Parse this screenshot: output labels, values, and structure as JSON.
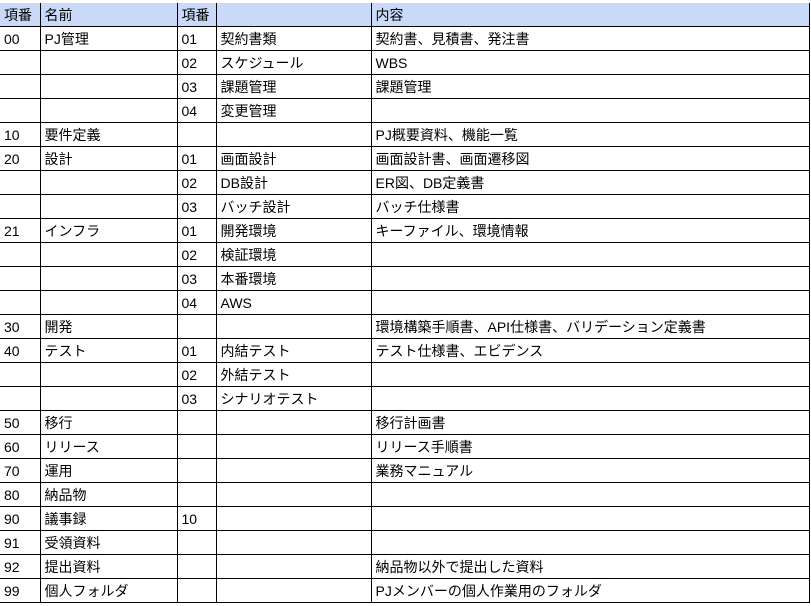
{
  "header": [
    "項番",
    "名前",
    "項番",
    "",
    "内容"
  ],
  "header_bg": "#c9daf8",
  "rows": [
    [
      "00",
      "PJ管理",
      "01",
      "契約書類",
      "契約書、見積書、発注書"
    ],
    [
      "",
      "",
      "02",
      "スケジュール",
      "WBS"
    ],
    [
      "",
      "",
      "03",
      "課題管理",
      "課題管理"
    ],
    [
      "",
      "",
      "04",
      "変更管理",
      ""
    ],
    [
      "10",
      "要件定義",
      "",
      "",
      "PJ概要資料、機能一覧"
    ],
    [
      "20",
      "設計",
      "01",
      "画面設計",
      "画面設計書、画面遷移図"
    ],
    [
      "",
      "",
      "02",
      "DB設計",
      "ER図、DB定義書"
    ],
    [
      "",
      "",
      "03",
      "バッチ設計",
      "バッチ仕様書"
    ],
    [
      "21",
      "インフラ",
      "01",
      "開発環境",
      "キーファイル、環境情報"
    ],
    [
      "",
      "",
      "02",
      "検証環境",
      ""
    ],
    [
      "",
      "",
      "03",
      "本番環境",
      ""
    ],
    [
      "",
      "",
      "04",
      "AWS",
      ""
    ],
    [
      "30",
      "開発",
      "",
      "",
      "環境構築手順書、API仕様書、バリデーション定義書"
    ],
    [
      "40",
      "テスト",
      "01",
      "内結テスト",
      "テスト仕様書、エビデンス"
    ],
    [
      "",
      "",
      "02",
      "外結テスト",
      ""
    ],
    [
      "",
      "",
      "03",
      "シナリオテスト",
      ""
    ],
    [
      "50",
      "移行",
      "",
      "",
      "移行計画書"
    ],
    [
      "60",
      "リリース",
      "",
      "",
      "リリース手順書"
    ],
    [
      "70",
      "運用",
      "",
      "",
      "業務マニュアル"
    ],
    [
      "80",
      "納品物",
      "",
      "",
      ""
    ],
    [
      "90",
      "議事録",
      "10",
      "",
      ""
    ],
    [
      "91",
      "受領資料",
      "",
      "",
      ""
    ],
    [
      "92",
      "提出資料",
      "",
      "",
      "納品物以外で提出した資料"
    ],
    [
      "99",
      "個人フォルダ",
      "",
      "",
      "PJメンバーの個人作業用のフォルダ"
    ]
  ]
}
